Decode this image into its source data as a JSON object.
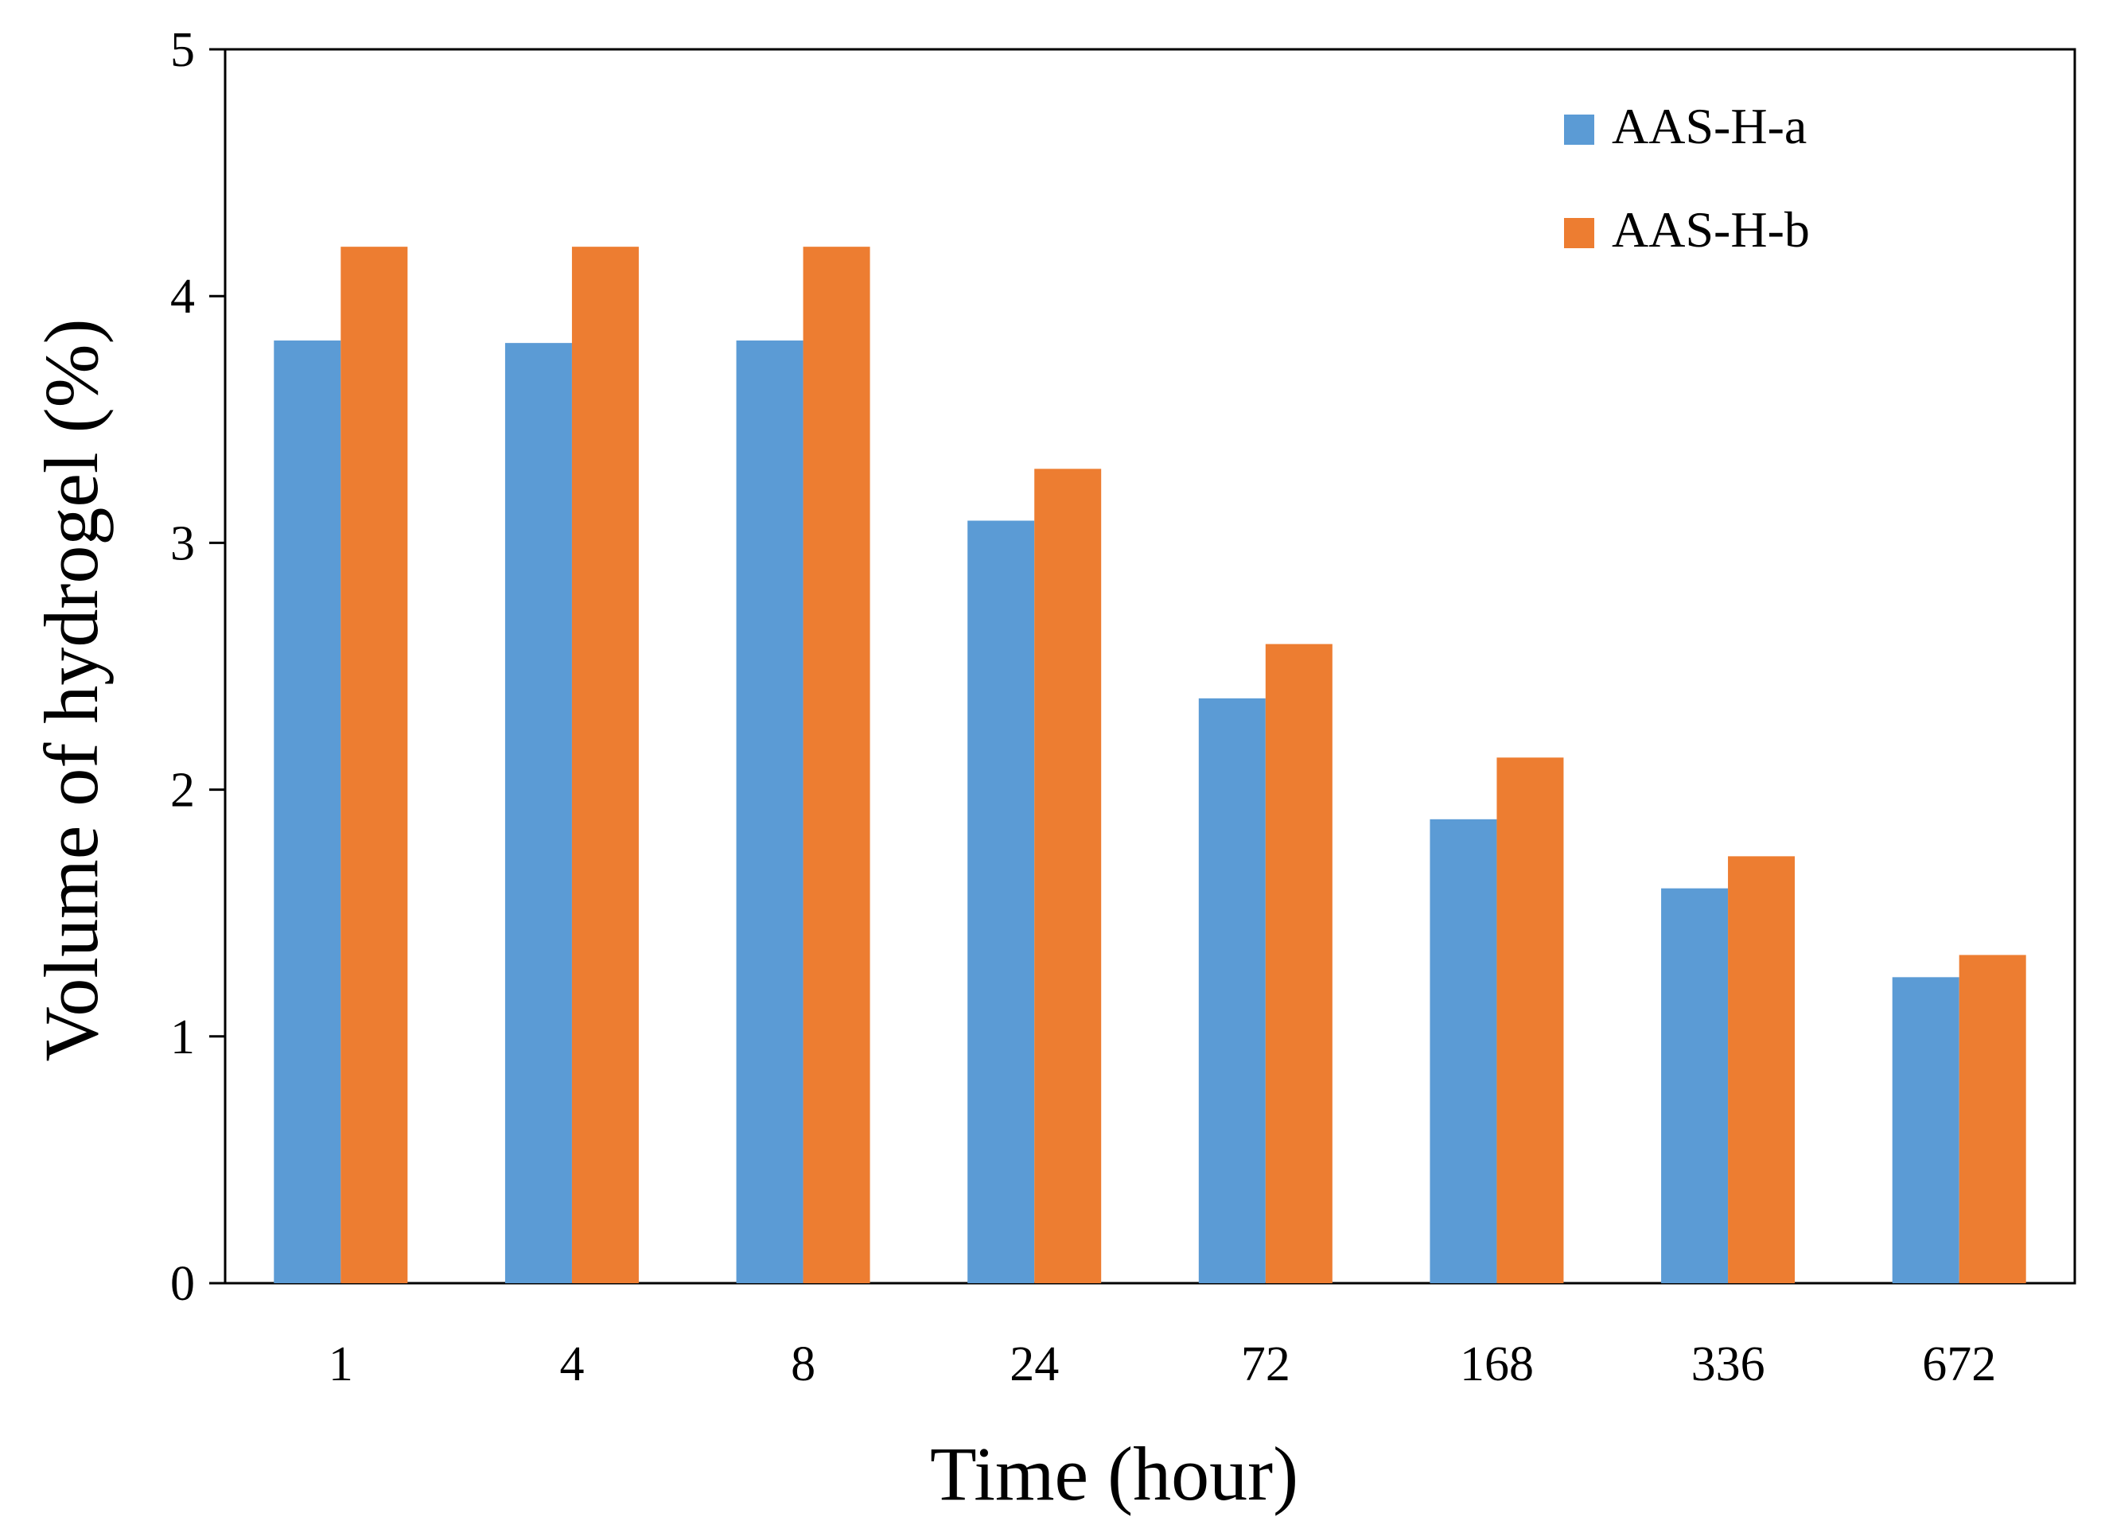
{
  "chart_data": {
    "type": "bar",
    "title": "",
    "xlabel": "Time (hour)",
    "ylabel": "Volume of hydrogel (%)",
    "categories": [
      "1",
      "4",
      "8",
      "24",
      "72",
      "168",
      "336",
      "672"
    ],
    "series": [
      {
        "name": "AAS-H-a",
        "color": "#5B9BD5",
        "values": [
          3.82,
          3.81,
          3.82,
          3.09,
          2.37,
          1.88,
          1.6,
          1.24
        ]
      },
      {
        "name": "AAS-H-b",
        "color": "#ED7D31",
        "values": [
          4.2,
          4.2,
          4.2,
          3.3,
          2.59,
          2.13,
          1.73,
          1.33
        ]
      }
    ],
    "ylim": [
      0,
      5
    ],
    "yticks": [
      0,
      1,
      2,
      3,
      4,
      5
    ],
    "grid": false,
    "legend_position": "top-right"
  }
}
